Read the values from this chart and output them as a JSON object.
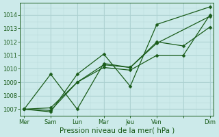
{
  "title": "",
  "xlabel": "Pression niveau de la mer( hPa )",
  "bg_color": "#cceaea",
  "grid_color": "#b8d8d8",
  "line_color": "#1a5c1a",
  "ylim": [
    1006.5,
    1014.9
  ],
  "xlim": [
    -0.15,
    7.15
  ],
  "ytick_positions": [
    1007,
    1008,
    1009,
    1010,
    1011,
    1012,
    1013,
    1014
  ],
  "xtick_positions": [
    0,
    1,
    2,
    3,
    4,
    5,
    6,
    7
  ],
  "xtick_labels": [
    "Mer",
    "Sam",
    "Lun",
    "Mar",
    "Jeu",
    "Ven",
    "",
    "Dim"
  ],
  "series_x": [
    [
      0,
      1,
      2,
      3,
      4,
      5,
      7
    ],
    [
      0,
      1,
      2,
      3,
      4,
      5,
      7
    ],
    [
      0,
      1,
      2,
      3,
      4,
      5,
      6,
      7
    ],
    [
      0,
      1,
      2,
      3,
      4,
      5,
      6,
      7
    ]
  ],
  "series_y": [
    [
      1007.0,
      1006.8,
      1009.6,
      1011.1,
      1008.7,
      1013.3,
      1014.6
    ],
    [
      1007.0,
      1009.6,
      1007.0,
      1010.4,
      1010.1,
      1011.9,
      1013.9
    ],
    [
      1007.0,
      1006.9,
      1009.0,
      1010.3,
      1010.1,
      1012.0,
      1011.7,
      1013.1
    ],
    [
      1007.0,
      1007.1,
      1009.0,
      1010.1,
      1009.9,
      1011.0,
      1011.0,
      1014.0
    ]
  ],
  "marker": "D",
  "marker_size": 2.5,
  "line_width": 0.9,
  "xlabel_fontsize": 7.5,
  "ytick_fontsize": 6.0,
  "xtick_fontsize": 6.0
}
